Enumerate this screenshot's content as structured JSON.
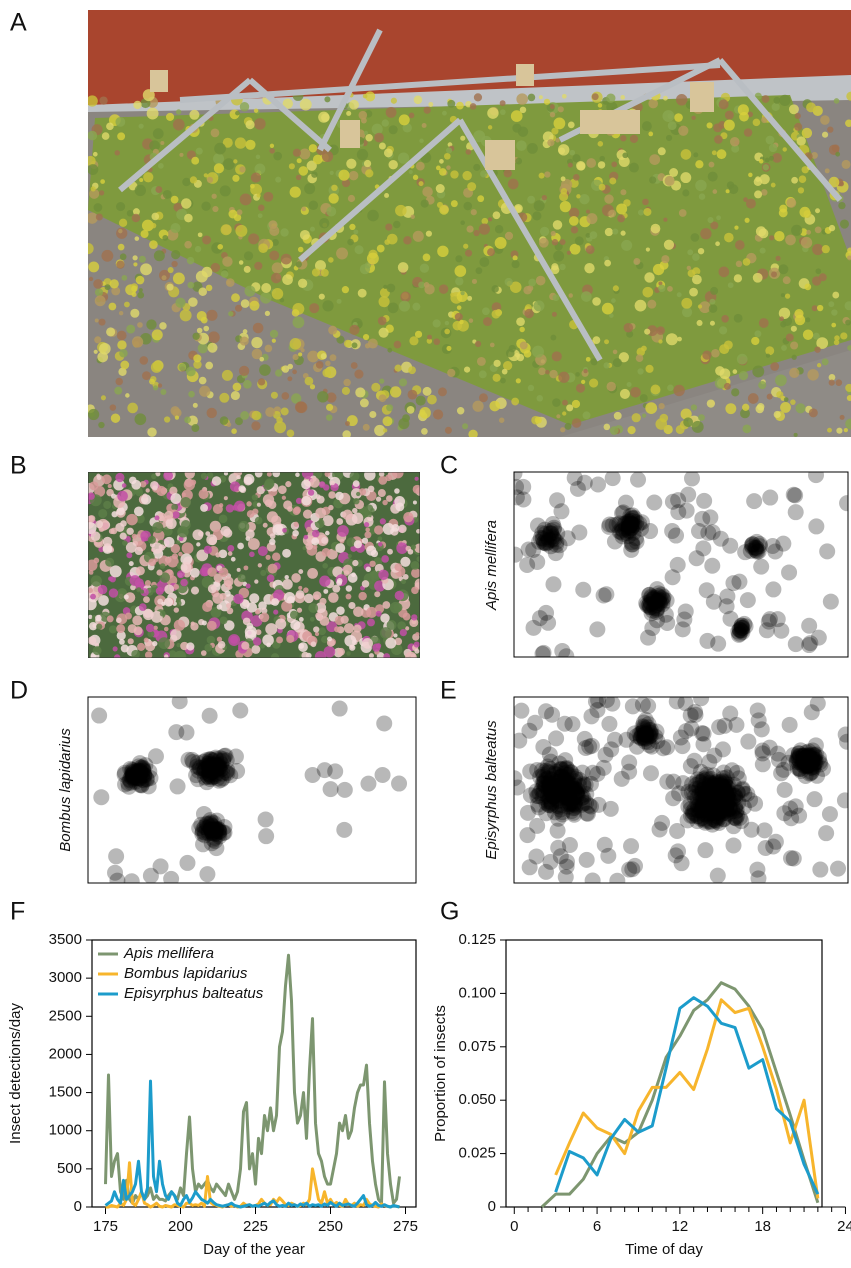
{
  "panel_letters": [
    "A",
    "B",
    "C",
    "D",
    "E",
    "F",
    "G"
  ],
  "density_labels": [
    "Apis mellifera",
    "Bombus lapidarius",
    "Episyrphus balteatus"
  ],
  "chart_data": [
    {
      "type": "line",
      "xlabel": "Day of the year",
      "ylabel": "Insect detections/day",
      "xlim": [
        170.5,
        278.5
      ],
      "ylim": [
        0,
        3500
      ],
      "xticks": [
        175,
        200,
        225,
        250,
        275
      ],
      "yticks": [
        0,
        500,
        1000,
        1500,
        2000,
        2500,
        3000,
        3500
      ],
      "legend": "upper left",
      "x": [
        175,
        176,
        177,
        178,
        179,
        180,
        181,
        182,
        183,
        184,
        185,
        186,
        187,
        188,
        189,
        190,
        191,
        192,
        193,
        194,
        195,
        196,
        197,
        198,
        199,
        200,
        201,
        202,
        203,
        204,
        205,
        206,
        207,
        208,
        209,
        210,
        211,
        212,
        213,
        214,
        215,
        216,
        217,
        218,
        219,
        220,
        221,
        222,
        223,
        224,
        225,
        226,
        227,
        228,
        229,
        230,
        231,
        232,
        233,
        234,
        235,
        236,
        237,
        238,
        239,
        240,
        241,
        242,
        243,
        244,
        245,
        246,
        247,
        248,
        249,
        250,
        251,
        252,
        253,
        254,
        255,
        256,
        257,
        258,
        259,
        260,
        261,
        262,
        263,
        264,
        265,
        266,
        267,
        268,
        269,
        270,
        271,
        272,
        273
      ],
      "series": [
        {
          "name": "Apis mellifera",
          "color": "#7d9670",
          "values": [
            300,
            1730,
            400,
            600,
            700,
            200,
            100,
            350,
            100,
            50,
            150,
            100,
            200,
            100,
            150,
            250,
            100,
            150,
            100,
            100,
            80,
            150,
            200,
            150,
            100,
            250,
            150,
            700,
            1180,
            500,
            200,
            300,
            250,
            300,
            350,
            250,
            200,
            300,
            250,
            200,
            150,
            300,
            200,
            100,
            200,
            500,
            1250,
            1370,
            500,
            700,
            300,
            900,
            700,
            1200,
            1000,
            1300,
            1000,
            1200,
            2100,
            2300,
            2900,
            3300,
            2700,
            1500,
            1100,
            1200,
            1500,
            900,
            1800,
            2470,
            1100,
            700,
            600,
            400,
            300,
            300,
            500,
            700,
            1100,
            1000,
            1200,
            900,
            1000,
            1300,
            1500,
            1600,
            1600,
            1860,
            1100,
            600,
            300,
            100,
            50,
            1640,
            700,
            300,
            50,
            100,
            400
          ]
        },
        {
          "name": "Bombus lapidarius",
          "color": "#f7b52c",
          "values": [
            0,
            0,
            20,
            10,
            0,
            50,
            20,
            100,
            580,
            50,
            20,
            100,
            200,
            50,
            30,
            0,
            20,
            50,
            10,
            0,
            20,
            10,
            0,
            30,
            20,
            10,
            0,
            50,
            50,
            20,
            30,
            20,
            50,
            10,
            400,
            60,
            30,
            20,
            10,
            0,
            20,
            30,
            10,
            20,
            0,
            10,
            50,
            20,
            30,
            10,
            20,
            40,
            100,
            50,
            20,
            30,
            100,
            60,
            120,
            80,
            30,
            20,
            50,
            30,
            10,
            20,
            50,
            30,
            100,
            500,
            300,
            100,
            50,
            200,
            50,
            100,
            30,
            60,
            20,
            10,
            100,
            30,
            20,
            50,
            10,
            30,
            20,
            100,
            40,
            20,
            10,
            0,
            40,
            20,
            10,
            0,
            20,
            10,
            0
          ]
        },
        {
          "name": "Episyrphus balteatus",
          "color": "#1c9ccb",
          "values": [
            20,
            50,
            80,
            200,
            100,
            50,
            350,
            100,
            150,
            200,
            300,
            600,
            200,
            100,
            250,
            1650,
            400,
            200,
            600,
            300,
            150,
            100,
            200,
            150,
            50,
            20,
            100,
            150,
            60,
            120,
            200,
            150,
            100,
            80,
            50,
            100,
            60,
            30,
            20,
            10,
            20,
            30,
            50,
            20,
            10,
            0,
            10,
            20,
            30,
            10,
            20,
            10,
            30,
            50,
            20,
            60,
            80,
            30,
            10,
            20,
            10,
            50,
            20,
            30,
            10,
            40,
            20,
            50,
            10,
            30,
            20,
            30,
            10,
            40,
            20,
            60,
            30,
            10,
            50,
            20,
            30,
            40,
            20,
            10,
            50,
            100,
            150,
            30,
            10,
            20,
            60,
            20,
            10,
            30,
            10,
            0,
            20,
            10,
            0
          ]
        }
      ]
    },
    {
      "type": "line",
      "xlabel": "Time of day",
      "ylabel": "Proportion of insects",
      "xlim": [
        -0.6,
        22.3
      ],
      "ylim": [
        0,
        0.125
      ],
      "xticks": [
        0,
        6,
        12,
        18,
        24
      ],
      "xticks_minor": [
        1,
        2,
        3,
        4,
        5,
        7,
        8,
        9,
        10,
        11,
        13,
        14,
        15,
        16,
        17,
        19,
        20,
        21,
        22,
        23
      ],
      "yticks": [
        0,
        0.025,
        {
          "value": 0.05,
          "label": "0.050"
        },
        0.075,
        {
          "value": 0.1,
          "label": "0.100"
        },
        0.125
      ],
      "x": [
        2,
        3,
        4,
        5,
        6,
        7,
        8,
        9,
        10,
        11,
        12,
        13,
        14,
        15,
        16,
        17,
        18,
        19,
        20,
        21,
        22
      ],
      "series": [
        {
          "color": "#7d9670",
          "values": [
            0,
            0.006,
            0.006,
            0.013,
            0.025,
            0.033,
            0.03,
            0.035,
            0.05,
            0.07,
            0.08,
            0.092,
            0.097,
            0.105,
            0.102,
            0.094,
            0.083,
            0.063,
            0.043,
            0.022,
            0.002
          ]
        },
        {
          "color": "#f7b52c",
          "values": [
            null,
            0.015,
            0.03,
            0.044,
            0.037,
            0.034,
            0.025,
            0.045,
            0.056,
            0.056,
            0.063,
            0.055,
            0.074,
            0.097,
            0.091,
            0.093,
            0.075,
            0.055,
            0.03,
            0.05,
            0.004
          ]
        },
        {
          "color": "#1c9ccb",
          "values": [
            null,
            0.007,
            0.026,
            0.023,
            0.015,
            0.032,
            0.041,
            0.035,
            0.038,
            0.065,
            0.093,
            0.098,
            0.094,
            0.086,
            0.084,
            0.065,
            0.069,
            0.046,
            0.04,
            0.02,
            0.006
          ]
        }
      ]
    }
  ]
}
